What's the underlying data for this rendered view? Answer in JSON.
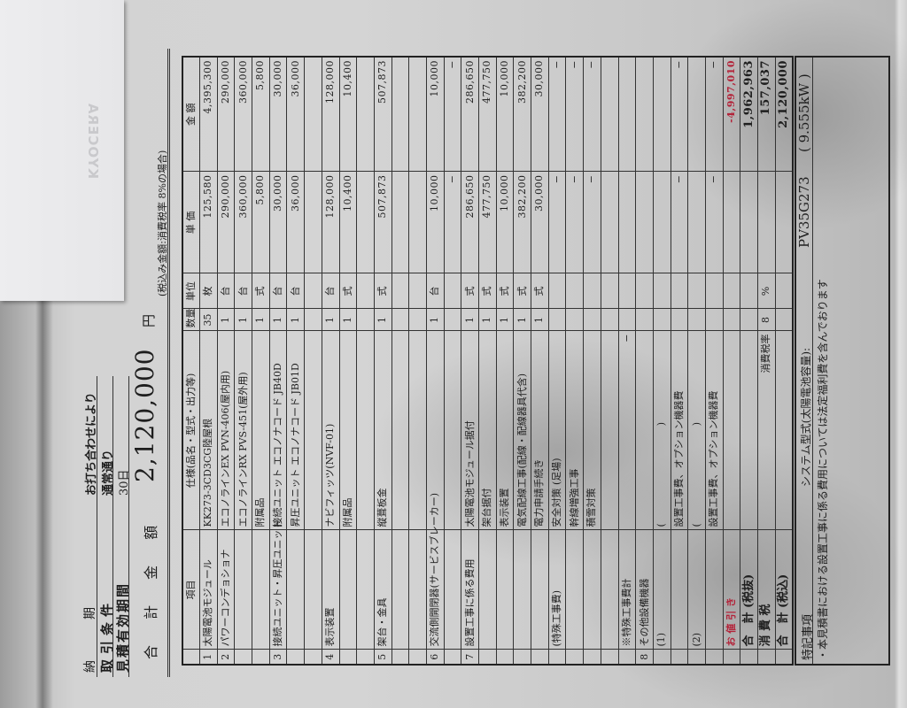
{
  "header": {
    "delivery_label": "納　　期",
    "delivery_value": "お打ち合わせにより",
    "terms_label": "取引条件",
    "terms_value": "通常通り",
    "validity_label": "見積有効期間",
    "validity_value": "30日",
    "total_label": "合 計 金 額",
    "total_value": "2,120,000",
    "total_unit": "円",
    "tax_note": "(税込み金額:消費税率 8%の場合)"
  },
  "table": {
    "columns": [
      "",
      "項目",
      "仕様(品名・型式・出力等)",
      "数量",
      "単位",
      "単 価",
      "金 額"
    ],
    "rows": [
      {
        "no": "1",
        "item": "太陽電池モジュール",
        "spec": "KK273-3CD3CG陸屋根",
        "qty": "35",
        "unit": "枚",
        "price": "125,580",
        "amount": "4,395,300"
      },
      {
        "no": "2",
        "item": "パワーコンデョショナ",
        "spec": "エコノラインEX PVN-406(屋内用)",
        "qty": "1",
        "unit": "台",
        "price": "290,000",
        "amount": "290,000"
      },
      {
        "spec": "エコノラインRX PVS-451(屋外用)",
        "qty": "1",
        "unit": "台",
        "price": "360,000",
        "amount": "360,000"
      },
      {
        "spec": "附属品",
        "qty": "1",
        "unit": "式",
        "price": "5,800",
        "amount": "5,800"
      },
      {
        "no": "3",
        "item": "接続ユニット・昇圧ユニット",
        "spec": "接続ユニット エコノナコード JB40D",
        "qty": "1",
        "unit": "台",
        "price": "30,000",
        "amount": "30,000"
      },
      {
        "spec": "昇圧ユニット エコノナコード JB01D",
        "qty": "1",
        "unit": "台",
        "price": "36,000",
        "amount": "36,000"
      },
      {},
      {
        "no": "4",
        "item": "表示装置",
        "spec": "ナビフィッツ(NVF-01)",
        "qty": "1",
        "unit": "台",
        "price": "128,000",
        "amount": "128,000"
      },
      {
        "spec": "附属品",
        "qty": "1",
        "unit": "式",
        "price": "10,400",
        "amount": "10,400"
      },
      {},
      {
        "no": "5",
        "item": "架台・金具",
        "spec": "縦葺板金",
        "qty": "1",
        "unit": "式",
        "price": "507,873",
        "amount": "507,873"
      },
      {},
      {},
      {
        "no": "6",
        "item": "交流側開閉器(サービスブレーカー)",
        "qty": "1",
        "unit": "台",
        "price": "10,000",
        "amount": "10,000"
      },
      {
        "price": "−",
        "amount": "−"
      },
      {
        "no": "7",
        "item": "設置工事に係る費用",
        "spec": "太陽電池モジュール据付",
        "qty": "1",
        "unit": "式",
        "price": "286,650",
        "amount": "286,650"
      },
      {
        "spec": "架台据付",
        "qty": "1",
        "unit": "式",
        "price": "477,750",
        "amount": "477,750"
      },
      {
        "spec": "表示装置",
        "qty": "1",
        "unit": "式",
        "price": "10,000",
        "amount": "10,000"
      },
      {
        "spec": "電気配線工事(配線・配線器具代含)",
        "qty": "1",
        "unit": "式",
        "price": "382,200",
        "amount": "382,200"
      },
      {
        "spec": "電力申請手続き",
        "qty": "1",
        "unit": "式",
        "price": "30,000",
        "amount": "30,000"
      },
      {
        "item": "(特殊工事費)",
        "spec": "安全対策 (足場)",
        "price": "−",
        "amount": "−"
      },
      {
        "spec": "幹線増強工事",
        "price": "−",
        "amount": "−"
      },
      {
        "spec": "積雪対策",
        "price": "−",
        "amount": "−"
      },
      {},
      {
        "item": "※特殊工事費計",
        "spec": "−"
      },
      {
        "no": "8",
        "item": "その他設備機器"
      },
      {
        "item": "(1)",
        "spec": "(　　　　　　　　　　)"
      },
      {
        "spec": "設置工事費、オプション機器費",
        "price": "−",
        "amount": "−"
      },
      {
        "item": "(2)",
        "spec": "(　　　　　　　　　　)"
      },
      {
        "spec": "設置工事費、オプション機器費",
        "price": "−",
        "amount": "−"
      },
      {
        "item": "お 値 引 き",
        "amount": "-4,997,010",
        "style": "red"
      },
      {
        "item": "合　計 (税抜)",
        "amount": "1,962,963",
        "style": "bold"
      },
      {
        "item": "消 費 税",
        "spec": "消費税率",
        "qty": "8",
        "unit": "%",
        "amount": "157,037",
        "style": "bold"
      },
      {
        "item": "合　計 (税込)",
        "amount": "2,120,000",
        "style": "bold"
      }
    ]
  },
  "notes": {
    "label": "特記事項",
    "system_label": "システム型式(太陽電池容量):",
    "system_model": "PV35G273",
    "capacity": "( 9.555kW )",
    "remark": "・本見積書における設置工事に係る費用については法定福利費を含んでおります"
  },
  "envelope": {
    "logo_text": "KYOCERA"
  },
  "colors": {
    "discount": "#b3243a",
    "paper": "#d4d4d4"
  }
}
